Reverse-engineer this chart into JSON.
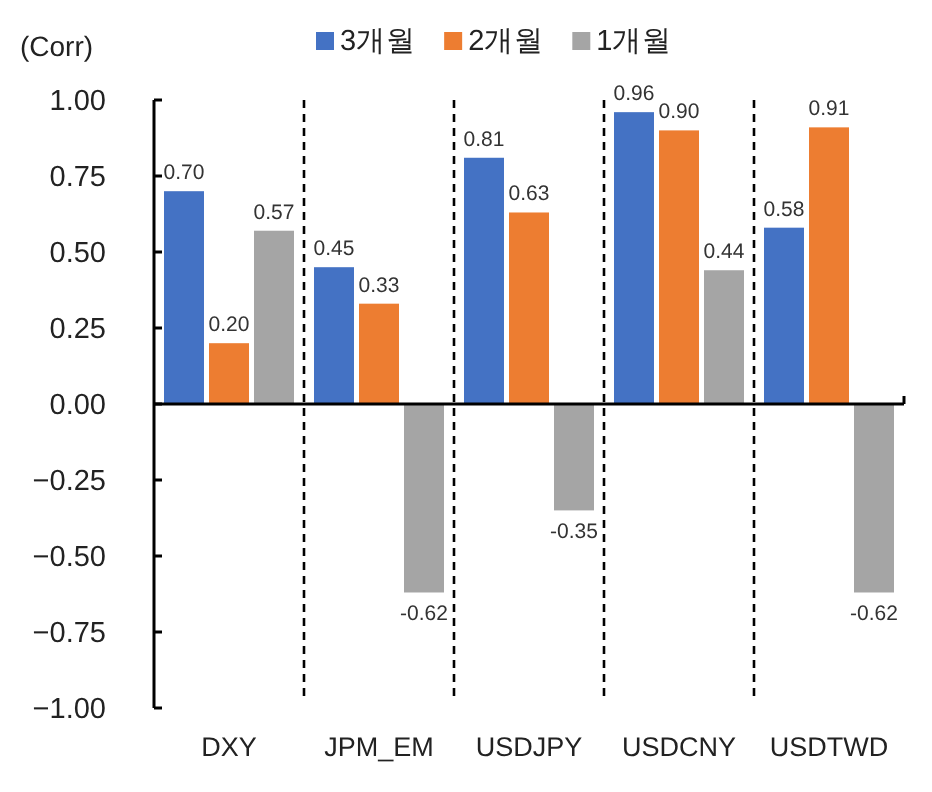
{
  "chart_data": {
    "type": "bar",
    "ylabel": "(Corr)",
    "categories": [
      "DXY",
      "JPM_EM",
      "USDJPY",
      "USDCNY",
      "USDTWD"
    ],
    "series": [
      {
        "name": "3개월",
        "color": "#4472c4",
        "values": [
          0.7,
          0.45,
          0.81,
          0.96,
          0.58
        ],
        "value_labels": [
          "0.70",
          "0.45",
          "0.81",
          "0.96",
          "0.58"
        ]
      },
      {
        "name": "2개월",
        "color": "#ed7d31",
        "values": [
          0.2,
          0.33,
          0.63,
          0.9,
          0.91
        ],
        "value_labels": [
          "0.20",
          "0.33",
          "0.63",
          "0.90",
          "0.91"
        ]
      },
      {
        "name": "1개월",
        "color": "#a5a5a5",
        "values": [
          0.57,
          -0.62,
          -0.35,
          0.44,
          -0.62
        ],
        "value_labels": [
          "0.57",
          "-0.62",
          "-0.35",
          "0.44",
          "-0.62"
        ]
      }
    ],
    "ylim": [
      -1,
      1
    ],
    "yticks": [
      {
        "value": -1,
        "label": "−1.00"
      },
      {
        "value": -0.75,
        "label": "−0.75"
      },
      {
        "value": -0.5,
        "label": "−0.50"
      },
      {
        "value": -0.25,
        "label": "−0.25"
      },
      {
        "value": 0,
        "label": "0.00"
      },
      {
        "value": 0.25,
        "label": "0.25"
      },
      {
        "value": 0.5,
        "label": "0.50"
      },
      {
        "value": 0.75,
        "label": "0.75"
      },
      {
        "value": 1,
        "label": "1.00"
      }
    ],
    "legend": "top"
  }
}
